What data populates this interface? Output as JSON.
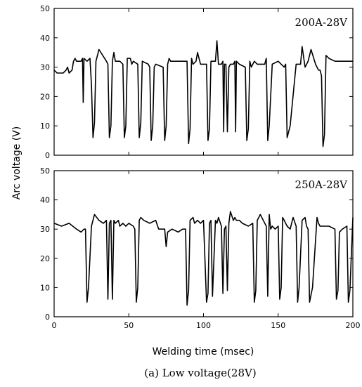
{
  "figure": {
    "ylabel": "Arc voltage (V)",
    "xlabel": "Welding time (msec)",
    "caption": "(a) Low voltage(28V)"
  },
  "chart_data": [
    {
      "type": "line",
      "annotation": "200A-28V",
      "xlim": [
        0,
        200
      ],
      "ylim": [
        0,
        50
      ],
      "xticks": [
        0,
        50,
        100,
        150,
        200
      ],
      "yticks": [
        0,
        10,
        20,
        30,
        40,
        50
      ],
      "show_xticklabels": false,
      "series": [
        {
          "x": [
            0,
            2,
            6,
            8,
            9,
            10,
            12,
            13,
            14,
            15,
            18,
            19,
            19.5,
            20,
            22,
            24,
            25,
            26,
            27,
            28,
            30,
            35,
            36,
            37,
            38,
            39,
            40,
            41,
            44,
            46,
            47,
            48,
            49,
            51,
            52,
            53,
            56,
            57,
            58,
            59,
            63,
            64,
            65,
            66,
            67,
            68,
            73,
            74,
            75,
            76,
            77,
            78,
            89,
            90,
            91,
            92,
            93,
            95,
            96,
            98,
            102,
            103,
            104,
            105,
            108,
            109,
            110,
            112,
            113,
            113.5,
            114,
            115,
            116,
            117,
            118,
            120,
            121,
            121.5,
            122,
            124,
            128,
            129,
            130,
            131,
            132,
            134,
            136,
            141,
            142,
            143,
            144,
            146,
            150,
            152,
            154,
            155,
            156,
            158,
            162,
            165,
            166,
            168,
            170,
            172,
            175,
            176,
            177,
            178,
            179,
            180,
            181,
            182,
            184,
            188,
            200
          ],
          "y": [
            29,
            28,
            28,
            29,
            30,
            28,
            29,
            32,
            33,
            32,
            32,
            33,
            18,
            33,
            32,
            33,
            24,
            6,
            11,
            32,
            36,
            32,
            31,
            6,
            10,
            32,
            35,
            32,
            32,
            31,
            6,
            10,
            33,
            33,
            31,
            32,
            31,
            6,
            11,
            32,
            31,
            30,
            5,
            10,
            30,
            31,
            30,
            5,
            10,
            31,
            33,
            32,
            32,
            4,
            9,
            33,
            31,
            32,
            35,
            31,
            31,
            5,
            9,
            32,
            32,
            39,
            31,
            31,
            32,
            8,
            31,
            31,
            8,
            30,
            31,
            31,
            32,
            8,
            32,
            31,
            30,
            5,
            9,
            32,
            30,
            32,
            31,
            31,
            33,
            5,
            10,
            31,
            32,
            31,
            30,
            31,
            6,
            10,
            31,
            31,
            37,
            30,
            32,
            36,
            31,
            30,
            29,
            29,
            27,
            3,
            7,
            34,
            33,
            32,
            32
          ]
        }
      ]
    },
    {
      "type": "line",
      "annotation": "250A-28V",
      "xlim": [
        0,
        200
      ],
      "ylim": [
        0,
        50
      ],
      "xticks": [
        0,
        50,
        100,
        150,
        200
      ],
      "xticklabels": [
        "0",
        "50",
        "100",
        "150",
        "200"
      ],
      "yticks": [
        0,
        10,
        20,
        30,
        40,
        50
      ],
      "show_xticklabels": true,
      "series": [
        {
          "x": [
            0,
            5,
            10,
            15,
            18,
            20,
            21,
            22,
            23,
            25,
            27,
            30,
            33,
            35,
            36,
            37,
            38,
            39,
            40,
            41,
            43,
            44,
            46,
            48,
            50,
            53,
            54,
            55,
            56,
            57,
            58,
            60,
            64,
            68,
            70,
            74,
            75,
            76,
            79,
            83,
            86,
            88,
            89,
            90,
            91,
            93,
            94,
            96,
            98,
            100,
            102,
            103,
            104,
            105,
            106,
            108,
            109,
            110,
            112,
            113,
            114,
            115,
            116,
            117,
            118,
            120,
            121,
            122,
            124,
            126,
            130,
            133,
            134,
            135,
            136,
            138,
            140,
            142,
            143,
            144,
            145,
            146,
            148,
            150,
            151,
            152,
            153,
            154,
            156,
            158,
            160,
            162,
            163,
            164,
            166,
            168,
            169,
            170,
            171,
            173,
            176,
            177,
            178,
            179,
            181,
            184,
            188,
            189,
            190,
            191,
            193,
            196,
            197,
            198,
            200
          ],
          "y": [
            32,
            31,
            32,
            30,
            29,
            30,
            30,
            5,
            10,
            31,
            35,
            33,
            32,
            33,
            6,
            32,
            33,
            6,
            33,
            32,
            33,
            31,
            32,
            31,
            32,
            31,
            30,
            5,
            10,
            33,
            34,
            33,
            32,
            33,
            30,
            30,
            24,
            29,
            30,
            29,
            30,
            30,
            4,
            9,
            33,
            34,
            32,
            33,
            32,
            33,
            5,
            8,
            32,
            33,
            7,
            33,
            32,
            34,
            31,
            8,
            30,
            31,
            9,
            32,
            36,
            33,
            34,
            33,
            33,
            32,
            31,
            32,
            5,
            9,
            33,
            35,
            33,
            31,
            7,
            35,
            30,
            31,
            30,
            31,
            6,
            10,
            34,
            33,
            31,
            30,
            34,
            31,
            5,
            10,
            33,
            34,
            31,
            30,
            5,
            10,
            34,
            32,
            31,
            31,
            31,
            31,
            30,
            6,
            9,
            29,
            30,
            31,
            5,
            9,
            34
          ]
        }
      ]
    }
  ]
}
